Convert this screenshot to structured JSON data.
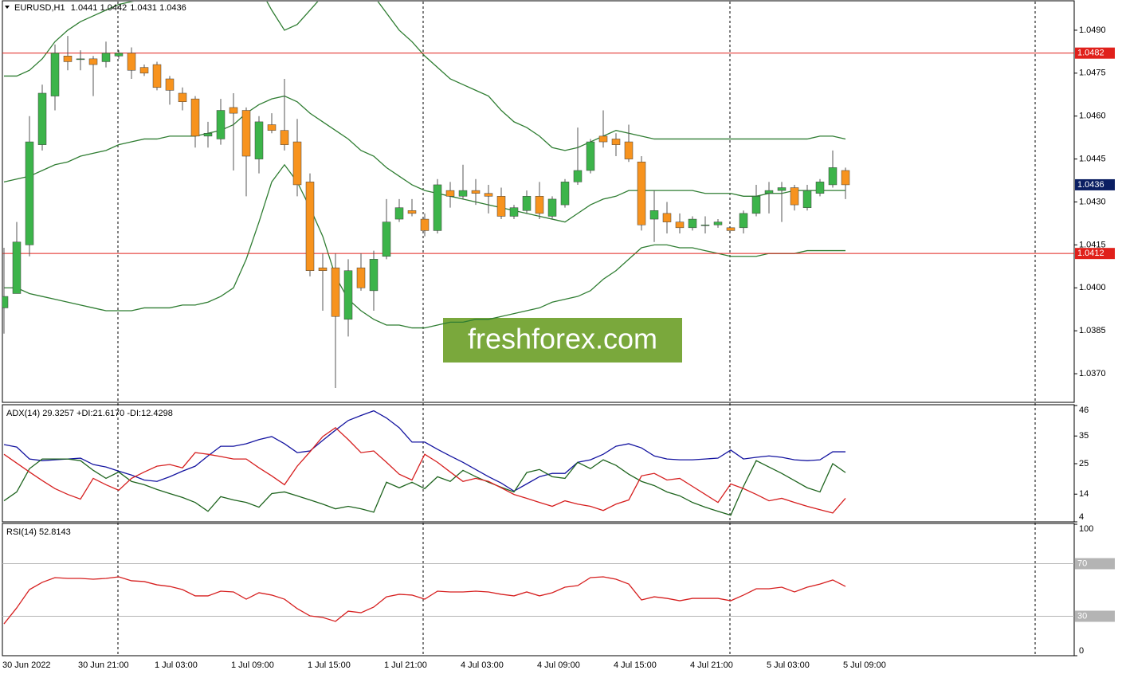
{
  "chart_data": [
    {
      "type": "candlestick",
      "title": "EURUSD,H1",
      "categories": [
        "30 Jun 2022",
        null,
        null,
        null,
        null,
        null,
        null,
        null,
        null,
        "30 Jun 21:00",
        null,
        null,
        null,
        null,
        null,
        "1 Jul 03:00",
        null,
        null,
        null,
        null,
        null,
        "1 Jul 09:00",
        null,
        null,
        null,
        null,
        null,
        "1 Jul 15:00",
        null,
        null,
        null,
        null,
        null,
        "1 Jul 21:00",
        null,
        null,
        null,
        null,
        null,
        "4 Jul 03:00",
        null,
        null,
        null,
        null,
        null,
        "4 Jul 09:00",
        null,
        null,
        null,
        null,
        null,
        "4 Jul 15:00",
        null,
        null,
        null,
        null,
        null,
        "4 Jul 21:00",
        null,
        null,
        null,
        null,
        null,
        "5 Jul 03:00",
        null,
        null,
        null,
        null,
        null,
        "5 Jul 09:00"
      ],
      "open": [
        1.0393,
        1.0398,
        1.0415,
        1.045,
        1.0467,
        1.0481,
        1.048,
        1.048,
        1.0479,
        1.0481,
        1.0482,
        1.0477,
        1.0478,
        1.0473,
        1.0468,
        1.0466,
        1.0453,
        1.0452,
        1.0463,
        1.0462,
        1.0445,
        1.0457,
        1.0455,
        1.0451,
        1.0437,
        1.0407,
        1.0407,
        1.0389,
        1.0407,
        1.0399,
        1.0411,
        1.0424,
        1.0427,
        1.0424,
        1.042,
        1.0434,
        1.0432,
        1.0434,
        1.0433,
        1.0432,
        1.0425,
        1.0427,
        1.0432,
        1.0425,
        1.0429,
        1.0437,
        1.0441,
        1.0453,
        1.0452,
        1.0451,
        1.0444,
        1.0424,
        1.0426,
        1.0423,
        1.0421,
        1.0422,
        1.0422,
        1.0421,
        1.0421,
        1.0426,
        1.0433,
        1.0434,
        1.0435,
        1.0428,
        1.0433,
        1.0436,
        1.0441,
        null,
        null,
        null
      ],
      "high": [
        1.0414,
        1.0423,
        1.046,
        1.0471,
        1.0485,
        1.0488,
        1.0483,
        1.0481,
        1.0486,
        1.0483,
        1.0484,
        1.0478,
        1.0479,
        1.0474,
        1.047,
        1.0467,
        1.0458,
        1.0466,
        1.0468,
        1.0463,
        1.046,
        1.0461,
        1.0473,
        1.0459,
        1.044,
        1.0412,
        1.0412,
        1.041,
        1.0412,
        1.0413,
        1.0431,
        1.0431,
        1.0431,
        1.0426,
        1.0438,
        1.0437,
        1.0443,
        1.0438,
        1.0436,
        1.0435,
        1.0429,
        1.0434,
        1.0437,
        1.0432,
        1.0438,
        1.0456,
        1.0452,
        1.0462,
        1.0454,
        1.0457,
        1.0446,
        1.0434,
        1.043,
        1.0426,
        1.0425,
        1.0425,
        1.0424,
        1.0421,
        1.0427,
        1.0436,
        1.0437,
        1.0437,
        1.0436,
        1.0436,
        1.0438,
        1.0448,
        1.0442,
        null,
        null,
        null
      ],
      "low": [
        1.0384,
        1.0398,
        1.0411,
        1.0448,
        1.0462,
        1.0476,
        1.0476,
        1.0467,
        1.0477,
        1.048,
        1.0473,
        1.0474,
        1.0469,
        1.0464,
        1.0462,
        1.0449,
        1.0449,
        1.045,
        1.0441,
        1.0432,
        1.044,
        1.0454,
        1.0448,
        1.0432,
        1.0404,
        1.0392,
        1.0365,
        1.0383,
        1.0399,
        1.0392,
        1.041,
        1.0423,
        1.0425,
        1.0418,
        1.0419,
        1.0428,
        1.0431,
        1.0429,
        1.0426,
        1.0424,
        1.0424,
        1.0426,
        1.0424,
        1.0424,
        1.0428,
        1.0436,
        1.044,
        1.0449,
        1.0446,
        1.0444,
        1.042,
        1.0416,
        1.0419,
        1.0419,
        1.042,
        1.0419,
        1.0421,
        1.042,
        1.0419,
        1.0425,
        1.0426,
        1.0423,
        1.0427,
        1.0427,
        1.0432,
        1.0435,
        1.0431,
        null,
        null,
        null
      ],
      "close": [
        1.0397,
        1.0416,
        1.0451,
        1.0468,
        1.0482,
        1.0479,
        1.048,
        1.0478,
        1.0482,
        1.0482,
        1.0476,
        1.0475,
        1.047,
        1.0469,
        1.0465,
        1.0453,
        1.0454,
        1.0462,
        1.0461,
        1.0446,
        1.0458,
        1.0455,
        1.045,
        1.0436,
        1.0406,
        1.0406,
        1.039,
        1.0406,
        1.04,
        1.041,
        1.0423,
        1.0428,
        1.0426,
        1.042,
        1.0436,
        1.0432,
        1.0434,
        1.0433,
        1.0432,
        1.0425,
        1.0428,
        1.0432,
        1.0426,
        1.0431,
        1.0437,
        1.0441,
        1.0451,
        1.0451,
        1.045,
        1.0445,
        1.0422,
        1.0427,
        1.0423,
        1.0421,
        1.0424,
        1.0422,
        1.0423,
        1.042,
        1.0426,
        1.0432,
        1.0434,
        1.0435,
        1.0429,
        1.0434,
        1.0437,
        1.0442,
        1.0436,
        null,
        null,
        null
      ],
      "up_color": "#3cb44a",
      "down_color": "#f7931e",
      "overlays": [
        {
          "color": "#2f7d32",
          "values": [
            1.0474,
            1.0474,
            1.0476,
            1.048,
            1.0486,
            1.049,
            1.0493,
            1.0495,
            1.0497,
            1.0499,
            1.05,
            1.0501,
            1.0502,
            1.0504,
            1.0506,
            1.0508,
            1.051,
            1.0512,
            1.0512,
            1.051,
            1.0505,
            1.0497,
            1.049,
            1.0492,
            1.0497,
            1.0502,
            1.0506,
            1.0508,
            1.0506,
            1.0502,
            1.0496,
            1.049,
            1.0486,
            1.0481,
            1.0477,
            1.0473,
            1.0471,
            1.0469,
            1.0467,
            1.0462,
            1.0458,
            1.0456,
            1.0453,
            1.0449,
            1.0448,
            1.0449,
            1.0451,
            1.0453,
            1.0455,
            1.0454,
            1.0453,
            1.0452,
            1.0452,
            1.0452,
            1.0452,
            1.0452,
            1.0452,
            1.0452,
            1.0452,
            1.0452,
            1.0452,
            1.0452,
            1.0452,
            1.0452,
            1.0453,
            1.0453,
            1.0452,
            null,
            null,
            null
          ]
        },
        {
          "color": "#2f7d32",
          "values": [
            1.0437,
            1.0438,
            1.0439,
            1.0441,
            1.0443,
            1.0444,
            1.0446,
            1.0447,
            1.0448,
            1.045,
            1.0451,
            1.0452,
            1.0452,
            1.0453,
            1.0453,
            1.0453,
            1.0454,
            1.0455,
            1.0457,
            1.0461,
            1.0464,
            1.0466,
            1.0467,
            1.0465,
            1.0461,
            1.0458,
            1.0455,
            1.0452,
            1.0448,
            1.0446,
            1.0442,
            1.0439,
            1.0436,
            1.0434,
            1.0433,
            1.0432,
            1.0431,
            1.043,
            1.0429,
            1.0428,
            1.0427,
            1.0426,
            1.0425,
            1.0424,
            1.0423,
            1.0426,
            1.0429,
            1.0431,
            1.0432,
            1.0434,
            1.0434,
            1.0434,
            1.0434,
            1.0434,
            1.0434,
            1.0433,
            1.0433,
            1.0433,
            1.0432,
            1.0432,
            1.0433,
            1.0433,
            1.0434,
            1.0434,
            1.0434,
            1.0434,
            1.0434,
            null,
            null,
            null
          ]
        },
        {
          "color": "#2f7d32",
          "values": [
            1.04,
            1.04,
            1.0398,
            1.0397,
            1.0396,
            1.0395,
            1.0394,
            1.0393,
            1.0392,
            1.0392,
            1.0392,
            1.0393,
            1.0393,
            1.0393,
            1.0394,
            1.0394,
            1.0395,
            1.0397,
            1.04,
            1.041,
            1.0423,
            1.0437,
            1.0443,
            1.0437,
            1.0428,
            1.0418,
            1.0404,
            1.0396,
            1.0392,
            1.0389,
            1.0387,
            1.0387,
            1.0386,
            1.0386,
            1.0387,
            1.0388,
            1.0388,
            1.0389,
            1.0389,
            1.039,
            1.0391,
            1.0392,
            1.0393,
            1.0395,
            1.0396,
            1.0397,
            1.0399,
            1.0403,
            1.0406,
            1.041,
            1.0414,
            1.0415,
            1.0415,
            1.0414,
            1.0414,
            1.0413,
            1.0412,
            1.0411,
            1.0411,
            1.0411,
            1.0412,
            1.0412,
            1.0412,
            1.0413,
            1.0413,
            1.0413,
            1.0413,
            null,
            null,
            null
          ]
        }
      ],
      "levels": [
        {
          "value": 1.0482,
          "color": "#e0201b"
        },
        {
          "value": 1.0412,
          "color": "#e0201b"
        }
      ],
      "last_price_color": "#0b1f63",
      "ylim": [
        1.036,
        1.05
      ],
      "yticks": [
        {
          "value": 1.049,
          "label": "1.0490"
        },
        1.0475,
        {
          "value": 1.046,
          "label": "1.0460"
        },
        1.0445,
        {
          "value": 1.043,
          "label": "1.0430"
        },
        1.0415,
        {
          "value": 1.04,
          "label": "1.0400"
        },
        1.0385,
        {
          "value": 1.037,
          "label": "1.0370"
        }
      ]
    },
    {
      "type": "line",
      "title": "ADX(14) 29.3257 +DI:21.6170 -DI:12.4298",
      "series": [
        {
          "color": "#1414a0",
          "values": [
            31.9,
            31.0,
            26.7,
            26.1,
            26.4,
            26.7,
            27.0,
            24.7,
            23.8,
            22.3,
            20.9,
            19.1,
            18.6,
            20.3,
            22.3,
            24.1,
            27.8,
            31.3,
            31.3,
            32.2,
            33.7,
            34.8,
            32.2,
            29.0,
            29.6,
            33.4,
            37.1,
            40.6,
            42.4,
            44.1,
            41.5,
            38.0,
            32.8,
            32.8,
            30.2,
            27.8,
            25.5,
            22.9,
            20.3,
            18.0,
            15.1,
            17.7,
            20.3,
            21.5,
            21.5,
            25.5,
            26.4,
            28.4,
            31.3,
            32.2,
            30.7,
            27.8,
            26.7,
            26.4,
            26.4,
            26.7,
            27.0,
            29.9,
            26.7,
            27.3,
            27.8,
            27.3,
            26.4,
            26.1,
            26.4,
            29.3,
            29.3,
            null,
            null,
            null
          ]
        },
        {
          "color": "#1e641e",
          "values": [
            11.6,
            14.8,
            23.2,
            26.7,
            26.7,
            26.7,
            26.1,
            22.6,
            19.7,
            22.0,
            18.6,
            17.4,
            15.7,
            14.2,
            12.8,
            11.0,
            7.8,
            13.1,
            11.9,
            11.0,
            9.3,
            14.2,
            14.8,
            13.4,
            11.9,
            10.4,
            8.7,
            9.6,
            8.7,
            7.5,
            18.3,
            16.3,
            18.3,
            16.0,
            20.3,
            18.6,
            22.6,
            20.3,
            18.3,
            16.5,
            14.8,
            21.8,
            22.9,
            20.3,
            19.7,
            25.5,
            23.2,
            26.4,
            24.4,
            21.2,
            18.6,
            17.1,
            14.8,
            13.4,
            11.0,
            9.3,
            7.8,
            6.4,
            16.8,
            26.1,
            23.8,
            21.5,
            18.9,
            16.3,
            14.8,
            25.0,
            21.8,
            null,
            null,
            null
          ]
        },
        {
          "color": "#d61f1f",
          "values": [
            28.4,
            25.2,
            22.0,
            18.9,
            16.0,
            13.9,
            12.2,
            19.7,
            17.4,
            15.4,
            19.7,
            22.0,
            24.1,
            24.7,
            23.5,
            29.0,
            28.4,
            27.6,
            26.7,
            26.7,
            23.5,
            20.6,
            17.4,
            24.1,
            29.3,
            34.8,
            38.0,
            33.7,
            29.0,
            29.6,
            25.5,
            21.2,
            19.1,
            28.4,
            25.5,
            22.0,
            18.6,
            19.7,
            18.6,
            16.3,
            13.9,
            12.5,
            11.0,
            9.6,
            11.6,
            10.4,
            9.6,
            8.1,
            10.4,
            11.9,
            20.6,
            21.5,
            19.1,
            19.7,
            16.8,
            13.9,
            11.0,
            17.7,
            16.0,
            13.9,
            11.6,
            12.5,
            11.0,
            9.6,
            8.4,
            7.2,
            12.5,
            null,
            null,
            null
          ]
        }
      ],
      "ylim": [
        4,
        46
      ],
      "yticks": [
        46,
        35,
        25,
        14,
        4
      ]
    },
    {
      "type": "line",
      "title": "RSI(14) 52.8143",
      "series": [
        {
          "color": "#d61f1f",
          "values": [
            24.2,
            36.4,
            50.3,
            55.8,
            59.4,
            58.8,
            58.8,
            58.2,
            58.8,
            60.0,
            57.0,
            56.4,
            53.9,
            52.7,
            50.3,
            45.5,
            45.5,
            49.1,
            48.5,
            43.0,
            47.9,
            46.1,
            43.0,
            35.8,
            30.3,
            29.1,
            26.1,
            33.9,
            32.7,
            37.0,
            44.8,
            46.7,
            46.1,
            43.0,
            49.1,
            48.5,
            48.5,
            49.1,
            48.5,
            46.7,
            45.5,
            48.5,
            45.5,
            47.9,
            52.1,
            53.3,
            59.4,
            60.0,
            58.2,
            54.5,
            42.4,
            44.8,
            43.6,
            41.8,
            43.6,
            43.6,
            43.6,
            41.8,
            46.1,
            50.9,
            50.9,
            52.1,
            48.5,
            52.1,
            54.5,
            57.6,
            52.7,
            null,
            null,
            null
          ]
        }
      ],
      "levels": [
        70,
        30
      ],
      "level_color": "#b4b4b4",
      "ylim": [
        0,
        100
      ],
      "yticks": [
        100,
        0
      ]
    }
  ],
  "watermark": "freshforex.com"
}
